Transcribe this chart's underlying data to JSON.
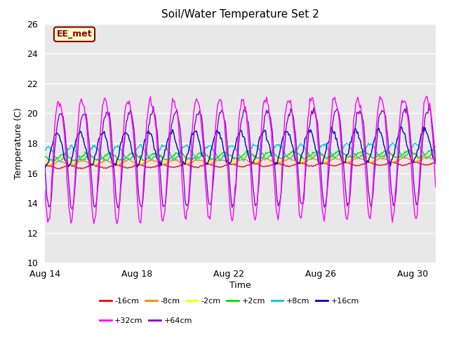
{
  "title": "Soil/Water Temperature Set 2",
  "ylabel": "Temperature (C)",
  "xlabel": "Time",
  "annotation": "EE_met",
  "ylim": [
    10,
    26
  ],
  "yticks": [
    10,
    12,
    14,
    16,
    18,
    20,
    22,
    24,
    26
  ],
  "xtick_positions": [
    0,
    4,
    8,
    12,
    16
  ],
  "xtick_labels": [
    "Aug 14",
    "Aug 18",
    "Aug 22",
    "Aug 26",
    "Aug 30"
  ],
  "bg_color": "#e8e8e8",
  "fig_color": "#ffffff",
  "series_order": [
    "-16cm",
    "-8cm",
    "-2cm",
    "+2cm",
    "+8cm",
    "+16cm",
    "+64cm",
    "+32cm"
  ],
  "series_params": {
    "-16cm": {
      "base": 16.4,
      "amp": 0.1,
      "noise": 0.02,
      "color": "#ff0000"
    },
    "-8cm": {
      "base": 16.65,
      "amp": 0.14,
      "noise": 0.03,
      "color": "#ff8800"
    },
    "-2cm": {
      "base": 16.85,
      "amp": 0.18,
      "noise": 0.04,
      "color": "#ffff00"
    },
    "+2cm": {
      "base": 17.05,
      "amp": 0.22,
      "noise": 0.05,
      "color": "#00dd00"
    },
    "+8cm": {
      "base": 17.3,
      "amp": 0.45,
      "noise": 0.06,
      "color": "#00cccc"
    },
    "+16cm": {
      "base": 17.6,
      "amp": 1.1,
      "noise": 0.1,
      "color": "#0000cc"
    },
    "+32cm": {
      "base": 17.3,
      "amp": 4.0,
      "noise": 0.15,
      "color": "#ff00ff"
    },
    "+64cm": {
      "base": 17.3,
      "amp": 3.2,
      "noise": 0.12,
      "color": "#8800cc"
    }
  },
  "legend_row1": [
    [
      "-16cm",
      "#ff0000"
    ],
    [
      "-8cm",
      "#ff8800"
    ],
    [
      "-2cm",
      "#ffff00"
    ],
    [
      "+2cm",
      "#00dd00"
    ],
    [
      "+8cm",
      "#00cccc"
    ],
    [
      "+16cm",
      "#0000cc"
    ]
  ],
  "legend_row2": [
    [
      "+32cm",
      "#ff00ff"
    ],
    [
      "+64cm",
      "#8800cc"
    ]
  ]
}
